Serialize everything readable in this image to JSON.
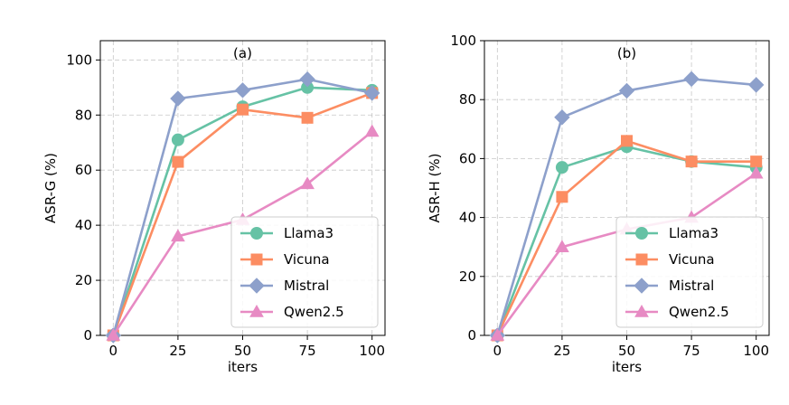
{
  "chart_data": [
    {
      "type": "line",
      "title": "(a)",
      "xlabel": "iters",
      "ylabel": "ASR-G (%)",
      "x": [
        0,
        25,
        50,
        75,
        100
      ],
      "xticks": [
        "0",
        "25",
        "50",
        "75",
        "100"
      ],
      "yticks": [
        "0",
        "20",
        "40",
        "60",
        "80",
        "100"
      ],
      "xlim": [
        -5,
        105
      ],
      "ylim": [
        0,
        107
      ],
      "grid": true,
      "legend_position": "lower-right",
      "series": [
        {
          "name": "Llama3",
          "color": "#66c2a5",
          "marker": "circle",
          "values": [
            0,
            71,
            83,
            90,
            89
          ]
        },
        {
          "name": "Vicuna",
          "color": "#fc8d62",
          "marker": "square",
          "values": [
            0,
            63,
            82,
            79,
            88
          ]
        },
        {
          "name": "Mistral",
          "color": "#8da0cb",
          "marker": "diamond",
          "values": [
            0,
            86,
            89,
            93,
            88
          ]
        },
        {
          "name": "Qwen2.5",
          "color": "#e78ac3",
          "marker": "triangle",
          "values": [
            0,
            36,
            42,
            55,
            74
          ]
        }
      ]
    },
    {
      "type": "line",
      "title": "(b)",
      "xlabel": "iters",
      "ylabel": "ASR-H (%)",
      "x": [
        0,
        25,
        50,
        75,
        100
      ],
      "xticks": [
        "0",
        "25",
        "50",
        "75",
        "100"
      ],
      "yticks": [
        "0",
        "20",
        "40",
        "60",
        "80",
        "100"
      ],
      "xlim": [
        -5,
        105
      ],
      "ylim": [
        0,
        100
      ],
      "grid": true,
      "legend_position": "lower-right",
      "series": [
        {
          "name": "Llama3",
          "color": "#66c2a5",
          "marker": "circle",
          "values": [
            0,
            57,
            64,
            59,
            57
          ]
        },
        {
          "name": "Vicuna",
          "color": "#fc8d62",
          "marker": "square",
          "values": [
            0,
            47,
            66,
            59,
            59
          ]
        },
        {
          "name": "Mistral",
          "color": "#8da0cb",
          "marker": "diamond",
          "values": [
            0,
            74,
            83,
            87,
            85
          ]
        },
        {
          "name": "Qwen2.5",
          "color": "#e78ac3",
          "marker": "triangle",
          "values": [
            0,
            30,
            36,
            40,
            55
          ]
        }
      ]
    }
  ]
}
